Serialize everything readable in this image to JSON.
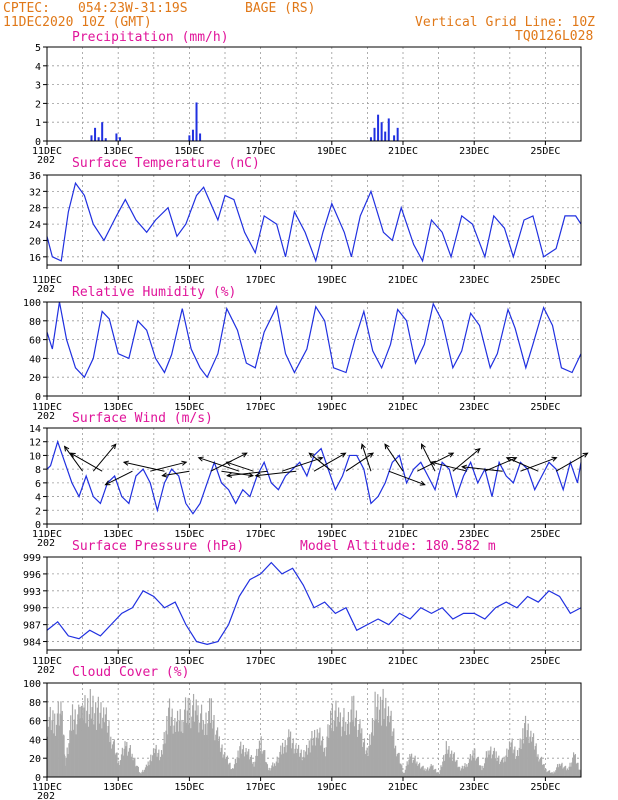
{
  "header": {
    "source": "CPTEC:",
    "coords": "054:23W-31:19S",
    "station": "BAGE (RS)",
    "datetime": "11DEC2020 10Z (GMT)",
    "grid_note": "Vertical Grid Line: 10Z",
    "code": "TQ0126L028"
  },
  "x_labels": [
    "11DEC",
    "13DEC",
    "15DEC",
    "17DEC",
    "19DEC",
    "21DEC",
    "23DEC",
    "25DEC"
  ],
  "x_label_stub": "202",
  "colors": {
    "series": "#2030e0",
    "bars": "#2030e0",
    "cloud": "#a8a8a8",
    "title": "#e0149a",
    "header": "#e07818"
  },
  "chart_data": [
    {
      "id": "precip",
      "type": "bar",
      "title": "Precipitation (mm/h)",
      "ylim": [
        0,
        5
      ],
      "yticks": [
        0,
        1,
        2,
        3,
        4,
        5
      ],
      "xlim": [
        0,
        15
      ],
      "x": [
        1.25,
        1.35,
        1.45,
        1.55,
        1.65,
        1.95,
        2.05,
        4.0,
        4.1,
        4.2,
        4.3,
        9.1,
        9.2,
        9.3,
        9.4,
        9.5,
        9.6,
        9.75,
        9.85
      ],
      "values": [
        0.3,
        0.7,
        0.2,
        1.0,
        0.15,
        0.4,
        0.2,
        0.3,
        0.6,
        2.05,
        0.4,
        0.2,
        0.7,
        1.4,
        1.0,
        0.5,
        1.2,
        0.3,
        0.7
      ]
    },
    {
      "id": "temp",
      "type": "line",
      "title": "Surface Temperature (nC)",
      "ylim": [
        14,
        36
      ],
      "yticks": [
        16,
        20,
        24,
        28,
        32,
        36
      ],
      "xlim": [
        0,
        15
      ],
      "x": [
        0,
        0.15,
        0.4,
        0.6,
        0.8,
        1.05,
        1.3,
        1.6,
        1.95,
        2.2,
        2.5,
        2.8,
        3.05,
        3.4,
        3.65,
        3.9,
        4.2,
        4.4,
        4.6,
        4.8,
        5.0,
        5.25,
        5.55,
        5.85,
        6.1,
        6.45,
        6.7,
        6.95,
        7.25,
        7.55,
        7.75,
        8.0,
        8.35,
        8.55,
        8.8,
        9.1,
        9.45,
        9.7,
        9.95,
        10.3,
        10.55,
        10.8,
        11.1,
        11.35,
        11.65,
        11.95,
        12.3,
        12.55,
        12.85,
        13.1,
        13.4,
        13.65,
        13.95,
        14.3,
        14.55,
        14.85,
        15.0
      ],
      "y": [
        21,
        16,
        15,
        27,
        34,
        31,
        24,
        20,
        26,
        30,
        25,
        22,
        25,
        28,
        21,
        24,
        31,
        33,
        29,
        25,
        31,
        30,
        22,
        17,
        26,
        24,
        16,
        27,
        22,
        15,
        22,
        29,
        22,
        16,
        26,
        32,
        22,
        20,
        28,
        19,
        15,
        25,
        22,
        16,
        26,
        24,
        16,
        26,
        23,
        16,
        25,
        26,
        16,
        18,
        26,
        26,
        24
      ]
    },
    {
      "id": "rh",
      "type": "line",
      "title": "Relative Humidity (%)",
      "ylim": [
        0,
        100
      ],
      "yticks": [
        0,
        20,
        40,
        60,
        80,
        100
      ],
      "xlim": [
        0,
        15
      ],
      "x": [
        0,
        0.15,
        0.35,
        0.55,
        0.8,
        1.05,
        1.3,
        1.55,
        1.75,
        2.0,
        2.3,
        2.55,
        2.8,
        3.05,
        3.3,
        3.5,
        3.8,
        4.05,
        4.3,
        4.5,
        4.8,
        5.05,
        5.35,
        5.6,
        5.85,
        6.1,
        6.45,
        6.7,
        6.95,
        7.3,
        7.55,
        7.8,
        8.05,
        8.4,
        8.65,
        8.9,
        9.15,
        9.4,
        9.65,
        9.85,
        10.1,
        10.35,
        10.6,
        10.85,
        11.1,
        11.4,
        11.65,
        11.9,
        12.15,
        12.45,
        12.65,
        12.95,
        13.15,
        13.45,
        13.65,
        13.95,
        14.2,
        14.45,
        14.75,
        15.0
      ],
      "y": [
        68,
        50,
        100,
        60,
        30,
        20,
        40,
        90,
        82,
        45,
        40,
        80,
        70,
        40,
        25,
        44,
        93,
        50,
        30,
        20,
        45,
        93,
        70,
        35,
        30,
        68,
        95,
        45,
        25,
        50,
        95,
        80,
        30,
        25,
        60,
        90,
        48,
        30,
        55,
        92,
        80,
        35,
        55,
        98,
        80,
        30,
        48,
        88,
        75,
        30,
        45,
        92,
        72,
        30,
        55,
        94,
        75,
        30,
        25,
        45
      ]
    },
    {
      "id": "wind",
      "type": "line",
      "title": "Surface Wind (m/s)",
      "ylim": [
        0,
        14
      ],
      "yticks": [
        0,
        2,
        4,
        6,
        8,
        10,
        12,
        14
      ],
      "xlim": [
        0,
        15
      ],
      "x": [
        0,
        0.1,
        0.3,
        0.5,
        0.7,
        0.9,
        1.1,
        1.3,
        1.5,
        1.7,
        1.9,
        2.1,
        2.3,
        2.5,
        2.7,
        2.9,
        3.1,
        3.3,
        3.5,
        3.7,
        3.9,
        4.1,
        4.3,
        4.5,
        4.7,
        4.9,
        5.1,
        5.3,
        5.5,
        5.7,
        5.9,
        6.1,
        6.3,
        6.5,
        6.7,
        6.9,
        7.1,
        7.3,
        7.5,
        7.7,
        7.9,
        8.1,
        8.3,
        8.5,
        8.7,
        8.9,
        9.1,
        9.3,
        9.5,
        9.7,
        9.9,
        10.1,
        10.3,
        10.5,
        10.7,
        10.9,
        11.1,
        11.3,
        11.5,
        11.7,
        11.9,
        12.1,
        12.3,
        12.5,
        12.7,
        12.9,
        13.1,
        13.3,
        13.5,
        13.7,
        13.9,
        14.1,
        14.3,
        14.5,
        14.7,
        14.9,
        15.0
      ],
      "y": [
        8,
        8.5,
        12,
        9,
        6,
        4,
        7,
        4,
        3,
        6,
        7,
        4,
        3,
        7,
        8,
        6,
        2,
        6,
        8,
        7,
        3,
        1.5,
        3,
        6,
        9,
        6,
        5,
        3,
        5,
        4,
        7,
        9,
        6,
        5,
        7,
        8,
        9,
        7,
        10,
        11,
        8,
        5,
        7,
        10,
        10,
        8,
        3,
        4,
        6,
        9,
        10,
        6,
        8,
        9,
        7,
        5,
        9,
        8,
        4,
        7,
        9,
        6,
        8,
        4,
        9,
        7,
        6,
        9,
        8,
        5,
        7,
        9,
        8,
        5,
        9,
        6,
        9
      ]
    },
    {
      "id": "pressure",
      "type": "line",
      "title": "Surface Pressure (hPa)",
      "extra": "Model Altitude: 180.582 m",
      "ylim": [
        982.5,
        999
      ],
      "yticks": [
        984,
        987,
        990,
        993,
        996,
        999
      ],
      "xlim": [
        0,
        15
      ],
      "x": [
        0,
        0.3,
        0.6,
        0.9,
        1.2,
        1.5,
        1.8,
        2.1,
        2.4,
        2.7,
        3.0,
        3.3,
        3.6,
        3.9,
        4.2,
        4.5,
        4.8,
        5.1,
        5.4,
        5.7,
        6.0,
        6.3,
        6.6,
        6.9,
        7.2,
        7.5,
        7.8,
        8.1,
        8.4,
        8.7,
        9.0,
        9.3,
        9.6,
        9.9,
        10.2,
        10.5,
        10.8,
        11.1,
        11.4,
        11.7,
        12.0,
        12.3,
        12.6,
        12.9,
        13.2,
        13.5,
        13.8,
        14.1,
        14.4,
        14.7,
        15.0
      ],
      "y": [
        986,
        987.5,
        985,
        984.5,
        986,
        985,
        987,
        989,
        990,
        993,
        992,
        990,
        991,
        987,
        984,
        983.5,
        984,
        987,
        992,
        995,
        996,
        998,
        996,
        997,
        994,
        990,
        991,
        989,
        990,
        986,
        987,
        988,
        987,
        989,
        988,
        990,
        989,
        990,
        988,
        989,
        989,
        988,
        990,
        991,
        990,
        992,
        991,
        993,
        992,
        989,
        990
      ]
    },
    {
      "id": "cloud",
      "type": "area",
      "title": "Cloud Cover (%)",
      "ylim": [
        0,
        100
      ],
      "yticks": [
        0,
        20,
        40,
        60,
        80,
        100
      ],
      "xlim": [
        0,
        15
      ],
      "x": [
        0,
        0.2,
        0.4,
        0.5,
        0.7,
        0.9,
        1.0,
        1.2,
        1.4,
        1.6,
        1.8,
        2.0,
        2.2,
        2.4,
        2.6,
        2.8,
        3.0,
        3.2,
        3.4,
        3.6,
        3.8,
        4.0,
        4.2,
        4.4,
        4.6,
        4.8,
        5.0,
        5.2,
        5.4,
        5.6,
        5.8,
        6.0,
        6.2,
        6.4,
        6.6,
        6.8,
        7.0,
        7.2,
        7.4,
        7.6,
        7.8,
        8.0,
        8.2,
        8.4,
        8.6,
        8.8,
        9.0,
        9.2,
        9.4,
        9.6,
        9.8,
        10.0,
        10.2,
        10.4,
        10.6,
        10.8,
        11.0,
        11.2,
        11.4,
        11.6,
        11.8,
        12.0,
        12.2,
        12.4,
        12.6,
        12.8,
        13.0,
        13.2,
        13.4,
        13.6,
        13.8,
        14.0,
        14.2,
        14.4,
        14.6,
        14.8,
        15.0
      ],
      "y": [
        78,
        78,
        90,
        20,
        85,
        80,
        95,
        98,
        90,
        85,
        55,
        20,
        45,
        30,
        5,
        15,
        40,
        30,
        90,
        70,
        85,
        95,
        90,
        75,
        92,
        50,
        30,
        10,
        40,
        35,
        20,
        50,
        10,
        20,
        40,
        55,
        40,
        30,
        50,
        60,
        40,
        90,
        80,
        75,
        95,
        60,
        35,
        95,
        100,
        85,
        40,
        5,
        30,
        20,
        10,
        15,
        5,
        40,
        30,
        10,
        20,
        35,
        10,
        40,
        30,
        20,
        50,
        30,
        70,
        55,
        30,
        10,
        5,
        20,
        10,
        30,
        5
      ]
    }
  ],
  "wind_arrows": {
    "note": "direction arrows shown over wind panel",
    "points": [
      [
        1.0,
        -40,
        -55
      ],
      [
        1.3,
        50,
        -60
      ],
      [
        1.55,
        -70,
        -40
      ],
      [
        2.4,
        -60,
        30
      ],
      [
        2.9,
        80,
        -20
      ],
      [
        3.3,
        -90,
        -20
      ],
      [
        4.0,
        -60,
        10
      ],
      [
        4.6,
        80,
        -40
      ],
      [
        4.9,
        70,
        10
      ],
      [
        5.4,
        -90,
        -30
      ],
      [
        5.8,
        -60,
        -20
      ],
      [
        6.2,
        -90,
        10
      ],
      [
        6.6,
        90,
        -30
      ],
      [
        7.0,
        -90,
        10
      ],
      [
        7.5,
        70,
        -40
      ],
      [
        8.0,
        -50,
        -40
      ],
      [
        8.4,
        60,
        -40
      ],
      [
        9.1,
        -20,
        -60
      ],
      [
        9.6,
        80,
        30
      ],
      [
        10.0,
        -40,
        -60
      ],
      [
        10.4,
        80,
        -40
      ],
      [
        10.9,
        -30,
        -60
      ],
      [
        11.4,
        60,
        -50
      ],
      [
        11.8,
        -80,
        -20
      ],
      [
        12.3,
        70,
        -30
      ],
      [
        12.8,
        -90,
        -10
      ],
      [
        13.3,
        80,
        -30
      ],
      [
        13.8,
        -70,
        -30
      ],
      [
        14.3,
        70,
        -40
      ]
    ]
  }
}
